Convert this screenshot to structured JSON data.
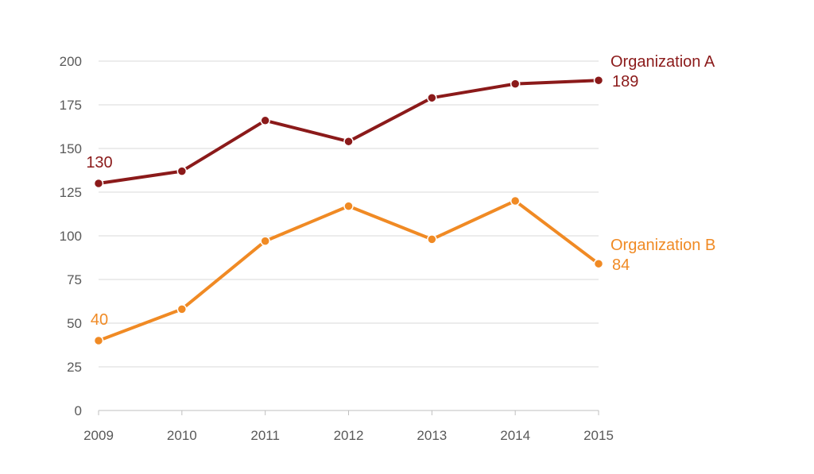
{
  "chart_data": {
    "type": "line",
    "x": [
      "2009",
      "2010",
      "2011",
      "2012",
      "2013",
      "2014",
      "2015"
    ],
    "ylim": [
      0,
      200
    ],
    "yticks": [
      0,
      25,
      50,
      75,
      100,
      125,
      150,
      175,
      200
    ],
    "grid": true,
    "legend": "none",
    "series": [
      {
        "name": "Organization A",
        "color": "#8B1A1A",
        "values": [
          130,
          137,
          166,
          154,
          179,
          187,
          189
        ],
        "start_label": "130",
        "end_label": "189"
      },
      {
        "name": "Organization B",
        "color": "#F08A24",
        "values": [
          40,
          58,
          97,
          117,
          98,
          120,
          84
        ],
        "start_label": "40",
        "end_label": "84"
      }
    ]
  }
}
